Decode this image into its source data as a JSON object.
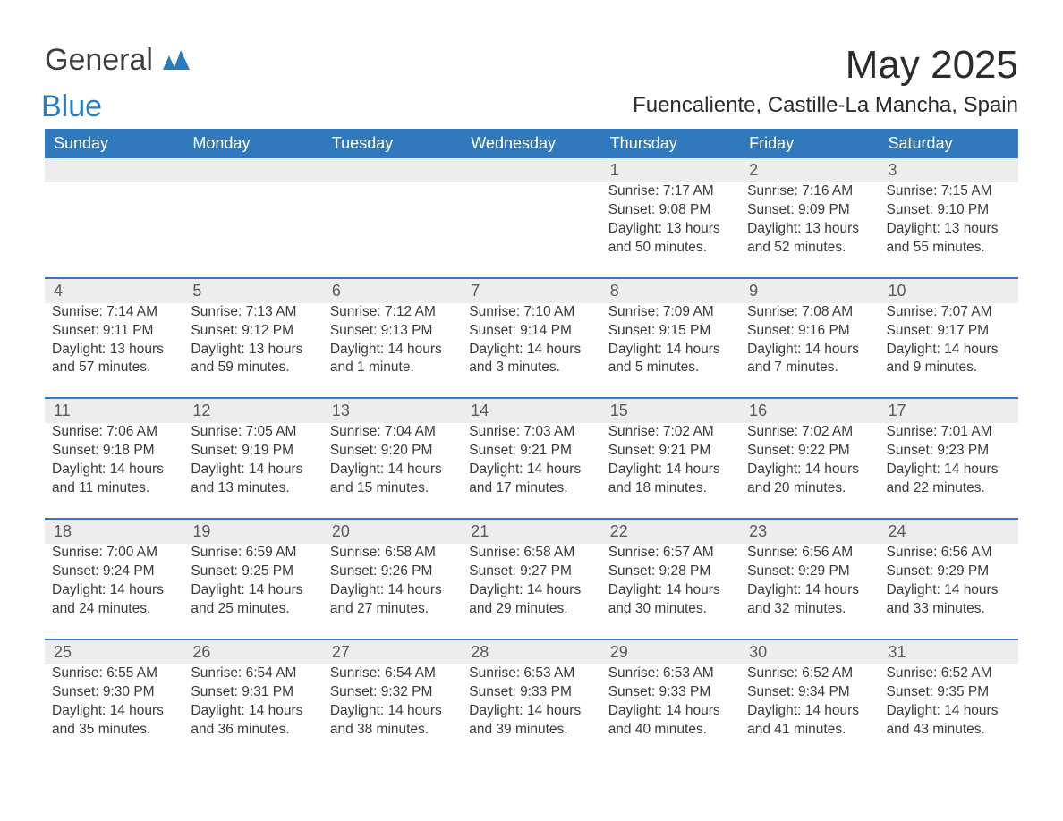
{
  "logo": {
    "word1": "General",
    "word2": "Blue",
    "mark_color": "#2a7ac0"
  },
  "title": "May 2025",
  "location": "Fuencaliente, Castille-La Mancha, Spain",
  "colors": {
    "header_bg": "#3079bd",
    "header_text": "#ffffff",
    "daynum_bg": "#ededed",
    "rule": "#3079bd",
    "text": "#3a3a3a"
  },
  "typography": {
    "title_fontsize": 44,
    "location_fontsize": 24,
    "dayheader_fontsize": 18,
    "cell_fontsize": 15.5
  },
  "table": {
    "type": "calendar",
    "columns": [
      "Sunday",
      "Monday",
      "Tuesday",
      "Wednesday",
      "Thursday",
      "Friday",
      "Saturday"
    ],
    "weeks": [
      [
        null,
        null,
        null,
        null,
        {
          "n": "1",
          "sunrise": "Sunrise: 7:17 AM",
          "sunset": "Sunset: 9:08 PM",
          "day1": "Daylight: 13 hours",
          "day2": "and 50 minutes."
        },
        {
          "n": "2",
          "sunrise": "Sunrise: 7:16 AM",
          "sunset": "Sunset: 9:09 PM",
          "day1": "Daylight: 13 hours",
          "day2": "and 52 minutes."
        },
        {
          "n": "3",
          "sunrise": "Sunrise: 7:15 AM",
          "sunset": "Sunset: 9:10 PM",
          "day1": "Daylight: 13 hours",
          "day2": "and 55 minutes."
        }
      ],
      [
        {
          "n": "4",
          "sunrise": "Sunrise: 7:14 AM",
          "sunset": "Sunset: 9:11 PM",
          "day1": "Daylight: 13 hours",
          "day2": "and 57 minutes."
        },
        {
          "n": "5",
          "sunrise": "Sunrise: 7:13 AM",
          "sunset": "Sunset: 9:12 PM",
          "day1": "Daylight: 13 hours",
          "day2": "and 59 minutes."
        },
        {
          "n": "6",
          "sunrise": "Sunrise: 7:12 AM",
          "sunset": "Sunset: 9:13 PM",
          "day1": "Daylight: 14 hours",
          "day2": "and 1 minute."
        },
        {
          "n": "7",
          "sunrise": "Sunrise: 7:10 AM",
          "sunset": "Sunset: 9:14 PM",
          "day1": "Daylight: 14 hours",
          "day2": "and 3 minutes."
        },
        {
          "n": "8",
          "sunrise": "Sunrise: 7:09 AM",
          "sunset": "Sunset: 9:15 PM",
          "day1": "Daylight: 14 hours",
          "day2": "and 5 minutes."
        },
        {
          "n": "9",
          "sunrise": "Sunrise: 7:08 AM",
          "sunset": "Sunset: 9:16 PM",
          "day1": "Daylight: 14 hours",
          "day2": "and 7 minutes."
        },
        {
          "n": "10",
          "sunrise": "Sunrise: 7:07 AM",
          "sunset": "Sunset: 9:17 PM",
          "day1": "Daylight: 14 hours",
          "day2": "and 9 minutes."
        }
      ],
      [
        {
          "n": "11",
          "sunrise": "Sunrise: 7:06 AM",
          "sunset": "Sunset: 9:18 PM",
          "day1": "Daylight: 14 hours",
          "day2": "and 11 minutes."
        },
        {
          "n": "12",
          "sunrise": "Sunrise: 7:05 AM",
          "sunset": "Sunset: 9:19 PM",
          "day1": "Daylight: 14 hours",
          "day2": "and 13 minutes."
        },
        {
          "n": "13",
          "sunrise": "Sunrise: 7:04 AM",
          "sunset": "Sunset: 9:20 PM",
          "day1": "Daylight: 14 hours",
          "day2": "and 15 minutes."
        },
        {
          "n": "14",
          "sunrise": "Sunrise: 7:03 AM",
          "sunset": "Sunset: 9:21 PM",
          "day1": "Daylight: 14 hours",
          "day2": "and 17 minutes."
        },
        {
          "n": "15",
          "sunrise": "Sunrise: 7:02 AM",
          "sunset": "Sunset: 9:21 PM",
          "day1": "Daylight: 14 hours",
          "day2": "and 18 minutes."
        },
        {
          "n": "16",
          "sunrise": "Sunrise: 7:02 AM",
          "sunset": "Sunset: 9:22 PM",
          "day1": "Daylight: 14 hours",
          "day2": "and 20 minutes."
        },
        {
          "n": "17",
          "sunrise": "Sunrise: 7:01 AM",
          "sunset": "Sunset: 9:23 PM",
          "day1": "Daylight: 14 hours",
          "day2": "and 22 minutes."
        }
      ],
      [
        {
          "n": "18",
          "sunrise": "Sunrise: 7:00 AM",
          "sunset": "Sunset: 9:24 PM",
          "day1": "Daylight: 14 hours",
          "day2": "and 24 minutes."
        },
        {
          "n": "19",
          "sunrise": "Sunrise: 6:59 AM",
          "sunset": "Sunset: 9:25 PM",
          "day1": "Daylight: 14 hours",
          "day2": "and 25 minutes."
        },
        {
          "n": "20",
          "sunrise": "Sunrise: 6:58 AM",
          "sunset": "Sunset: 9:26 PM",
          "day1": "Daylight: 14 hours",
          "day2": "and 27 minutes."
        },
        {
          "n": "21",
          "sunrise": "Sunrise: 6:58 AM",
          "sunset": "Sunset: 9:27 PM",
          "day1": "Daylight: 14 hours",
          "day2": "and 29 minutes."
        },
        {
          "n": "22",
          "sunrise": "Sunrise: 6:57 AM",
          "sunset": "Sunset: 9:28 PM",
          "day1": "Daylight: 14 hours",
          "day2": "and 30 minutes."
        },
        {
          "n": "23",
          "sunrise": "Sunrise: 6:56 AM",
          "sunset": "Sunset: 9:29 PM",
          "day1": "Daylight: 14 hours",
          "day2": "and 32 minutes."
        },
        {
          "n": "24",
          "sunrise": "Sunrise: 6:56 AM",
          "sunset": "Sunset: 9:29 PM",
          "day1": "Daylight: 14 hours",
          "day2": "and 33 minutes."
        }
      ],
      [
        {
          "n": "25",
          "sunrise": "Sunrise: 6:55 AM",
          "sunset": "Sunset: 9:30 PM",
          "day1": "Daylight: 14 hours",
          "day2": "and 35 minutes."
        },
        {
          "n": "26",
          "sunrise": "Sunrise: 6:54 AM",
          "sunset": "Sunset: 9:31 PM",
          "day1": "Daylight: 14 hours",
          "day2": "and 36 minutes."
        },
        {
          "n": "27",
          "sunrise": "Sunrise: 6:54 AM",
          "sunset": "Sunset: 9:32 PM",
          "day1": "Daylight: 14 hours",
          "day2": "and 38 minutes."
        },
        {
          "n": "28",
          "sunrise": "Sunrise: 6:53 AM",
          "sunset": "Sunset: 9:33 PM",
          "day1": "Daylight: 14 hours",
          "day2": "and 39 minutes."
        },
        {
          "n": "29",
          "sunrise": "Sunrise: 6:53 AM",
          "sunset": "Sunset: 9:33 PM",
          "day1": "Daylight: 14 hours",
          "day2": "and 40 minutes."
        },
        {
          "n": "30",
          "sunrise": "Sunrise: 6:52 AM",
          "sunset": "Sunset: 9:34 PM",
          "day1": "Daylight: 14 hours",
          "day2": "and 41 minutes."
        },
        {
          "n": "31",
          "sunrise": "Sunrise: 6:52 AM",
          "sunset": "Sunset: 9:35 PM",
          "day1": "Daylight: 14 hours",
          "day2": "and 43 minutes."
        }
      ]
    ]
  }
}
